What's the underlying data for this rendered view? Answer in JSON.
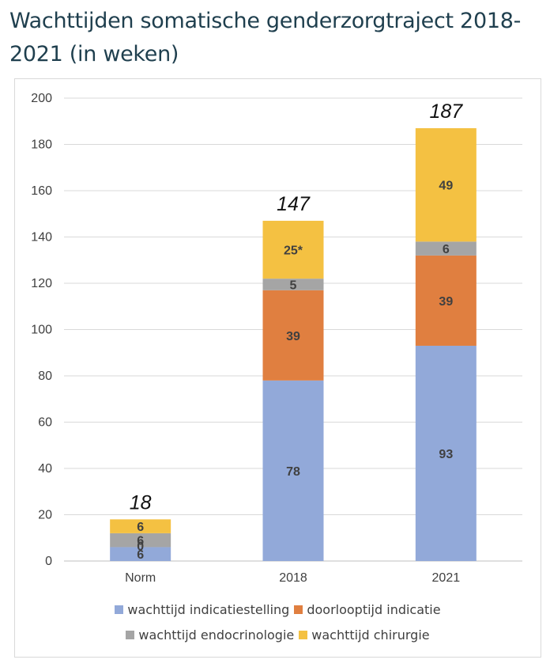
{
  "title": "Wachttijden somatische genderzorgtraject 2018-2021 (in weken)",
  "chart_data": {
    "type": "bar",
    "stacked": true,
    "categories": [
      "Norm",
      "2018",
      "2021"
    ],
    "series": [
      {
        "name": "wachttijd indicatiestelling",
        "color": "#92a9d9",
        "values": [
          6,
          78,
          93
        ],
        "labels": [
          "6",
          "78",
          "93"
        ]
      },
      {
        "name": "doorlooptijd indicatie",
        "color": "#e07f40",
        "values": [
          0,
          39,
          39
        ],
        "labels": [
          "0",
          "39",
          "39"
        ]
      },
      {
        "name": "wachttijd endocrinologie",
        "color": "#a5a5a5",
        "values": [
          6,
          5,
          6
        ],
        "labels": [
          "6",
          "5",
          "6"
        ]
      },
      {
        "name": "wachttijd chirurgie",
        "color": "#f4c142",
        "values": [
          6,
          25,
          49
        ],
        "labels": [
          "6",
          "25*",
          "49"
        ]
      }
    ],
    "totals": [
      "18",
      "147",
      "187"
    ],
    "yticks": [
      "0",
      "20",
      "40",
      "60",
      "80",
      "100",
      "120",
      "140",
      "160",
      "180",
      "200"
    ],
    "ylim": [
      0,
      200
    ],
    "grid": true,
    "legend_position": "bottom"
  }
}
